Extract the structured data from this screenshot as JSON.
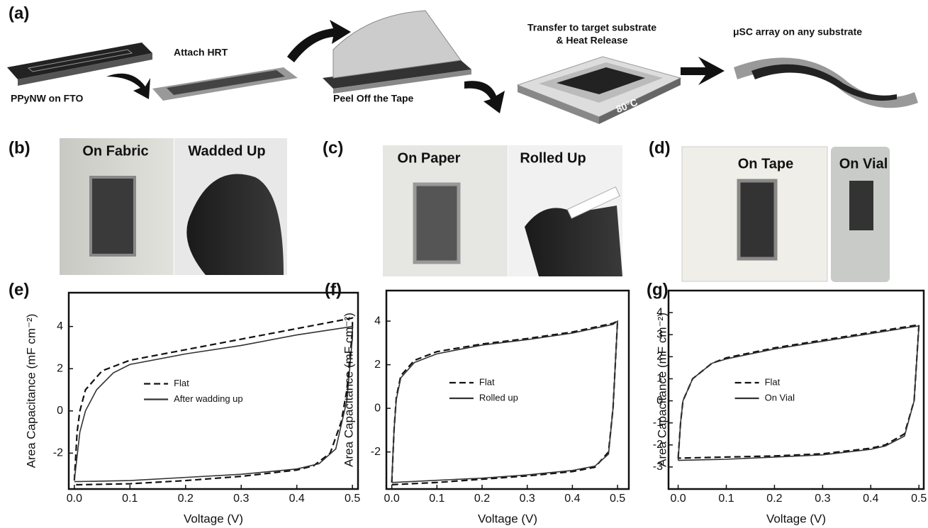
{
  "panels": {
    "a": {
      "label": "(a)",
      "steps": [
        "PPyNW on FTO",
        "Attach HRT",
        "Peel Off the Tape",
        "Transfer to target substrate",
        "& Heat Release",
        "μSC array on any substrate"
      ],
      "temperature": "80°C"
    },
    "b": {
      "label": "(b)",
      "photos": [
        "On Fabric",
        "Wadded Up"
      ]
    },
    "c": {
      "label": "(c)",
      "photos": [
        "On Paper",
        "Rolled Up"
      ]
    },
    "d": {
      "label": "(d)",
      "photos": [
        "On Tape",
        "On Vial"
      ]
    }
  },
  "chart_data": [
    {
      "type": "line",
      "label": "(e)",
      "xlabel": "Voltage (V)",
      "ylabel": "Area Capacitance (mF cm⁻²)",
      "xlim": [
        -0.01,
        0.51
      ],
      "xticks": [
        {
          "value": 0,
          "label": "0.0"
        },
        0.1,
        0.2,
        0.3,
        0.4,
        0.5
      ],
      "ylim": [
        -3.7,
        5.6
      ],
      "yticks": [
        -2,
        0,
        2,
        4
      ],
      "legend": "center",
      "series": [
        {
          "name": "Flat",
          "color": "#111111",
          "linestyle": "dashed",
          "x": [
            0,
            0.005,
            0.01,
            0.02,
            0.05,
            0.1,
            0.2,
            0.3,
            0.4,
            0.5,
            0.5,
            0.49,
            0.48,
            0.46,
            0.43,
            0.4,
            0.3,
            0.2,
            0.1,
            0
          ],
          "values": [
            -3.3,
            -1,
            0,
            1,
            1.9,
            2.4,
            2.9,
            3.4,
            3.9,
            4.4,
            3.8,
            1,
            -0.5,
            -2,
            -2.6,
            -2.8,
            -3.1,
            -3.3,
            -3.45,
            -3.5
          ]
        },
        {
          "name": "After wadding up",
          "color": "#333333",
          "linestyle": "solid",
          "x": [
            0,
            0.01,
            0.02,
            0.04,
            0.07,
            0.1,
            0.2,
            0.3,
            0.4,
            0.5,
            0.5,
            0.49,
            0.47,
            0.44,
            0.4,
            0.3,
            0.2,
            0.1,
            0
          ],
          "values": [
            -3.3,
            -1,
            0,
            1,
            1.8,
            2.2,
            2.7,
            3.1,
            3.6,
            4.0,
            3.5,
            0.5,
            -1.8,
            -2.5,
            -2.75,
            -3.0,
            -3.15,
            -3.3,
            -3.35
          ]
        }
      ]
    },
    {
      "type": "line",
      "label": "(f)",
      "xlabel": "Voltage (V)",
      "ylabel": "Area Capacitance (mF cm⁻²)",
      "xlim": [
        -0.012,
        0.525
      ],
      "xticks": [
        {
          "value": 0,
          "label": "0.0"
        },
        0.1,
        0.2,
        0.3,
        0.4,
        0.5
      ],
      "ylim": [
        -3.7,
        5.4
      ],
      "yticks": [
        -2,
        0,
        2,
        4
      ],
      "legend": "center",
      "series": [
        {
          "name": "Flat",
          "color": "#111111",
          "linestyle": "dashed",
          "x": [
            0,
            0.005,
            0.01,
            0.02,
            0.05,
            0.1,
            0.2,
            0.3,
            0.4,
            0.49,
            0.5,
            0.49,
            0.48,
            0.45,
            0.4,
            0.3,
            0.2,
            0.1,
            0
          ],
          "values": [
            -3.4,
            -1,
            0.5,
            1.5,
            2.2,
            2.6,
            2.95,
            3.2,
            3.5,
            3.9,
            4.0,
            0,
            -2,
            -2.7,
            -2.9,
            -3.1,
            -3.25,
            -3.4,
            -3.5
          ]
        },
        {
          "name": "Rolled up",
          "color": "#333333",
          "linestyle": "solid",
          "x": [
            0,
            0.005,
            0.01,
            0.02,
            0.05,
            0.1,
            0.2,
            0.3,
            0.4,
            0.49,
            0.5,
            0.49,
            0.48,
            0.45,
            0.4,
            0.3,
            0.2,
            0.1,
            0
          ],
          "values": [
            -3.3,
            -1,
            0.4,
            1.4,
            2.1,
            2.5,
            2.9,
            3.15,
            3.45,
            3.85,
            4.0,
            0,
            -2.1,
            -2.65,
            -2.85,
            -3.05,
            -3.2,
            -3.3,
            -3.4
          ]
        }
      ]
    },
    {
      "type": "line",
      "label": "(g)",
      "xlabel": "Voltage (V)",
      "ylabel": "Area Capacitance (mF cm⁻²)",
      "xlim": [
        -0.02,
        0.51
      ],
      "xticks": [
        {
          "value": 0,
          "label": "0.0"
        },
        0.1,
        0.2,
        0.3,
        0.4,
        0.5
      ],
      "ylim": [
        -4,
        5
      ],
      "yticks": [
        -3,
        -2,
        -1,
        0,
        1,
        2,
        3,
        4
      ],
      "legend": "center",
      "series": [
        {
          "name": "Flat",
          "color": "#111111",
          "linestyle": "dashed",
          "x": [
            0,
            0.005,
            0.01,
            0.03,
            0.07,
            0.1,
            0.2,
            0.3,
            0.4,
            0.5,
            0.49,
            0.47,
            0.43,
            0.4,
            0.3,
            0.2,
            0.1,
            0
          ],
          "values": [
            -2.6,
            -1,
            0,
            1,
            1.7,
            1.95,
            2.4,
            2.75,
            3.1,
            3.45,
            0,
            -1.5,
            -2,
            -2.15,
            -2.4,
            -2.5,
            -2.55,
            -2.6
          ]
        },
        {
          "name": "On Vial",
          "color": "#333333",
          "linestyle": "solid",
          "x": [
            0,
            0.005,
            0.01,
            0.03,
            0.07,
            0.1,
            0.2,
            0.3,
            0.4,
            0.5,
            0.49,
            0.47,
            0.43,
            0.4,
            0.3,
            0.2,
            0.1,
            0
          ],
          "values": [
            -2.7,
            -1,
            0,
            1,
            1.7,
            1.9,
            2.35,
            2.7,
            3.05,
            3.4,
            0,
            -1.6,
            -2.05,
            -2.2,
            -2.45,
            -2.55,
            -2.65,
            -2.7
          ]
        }
      ]
    }
  ]
}
